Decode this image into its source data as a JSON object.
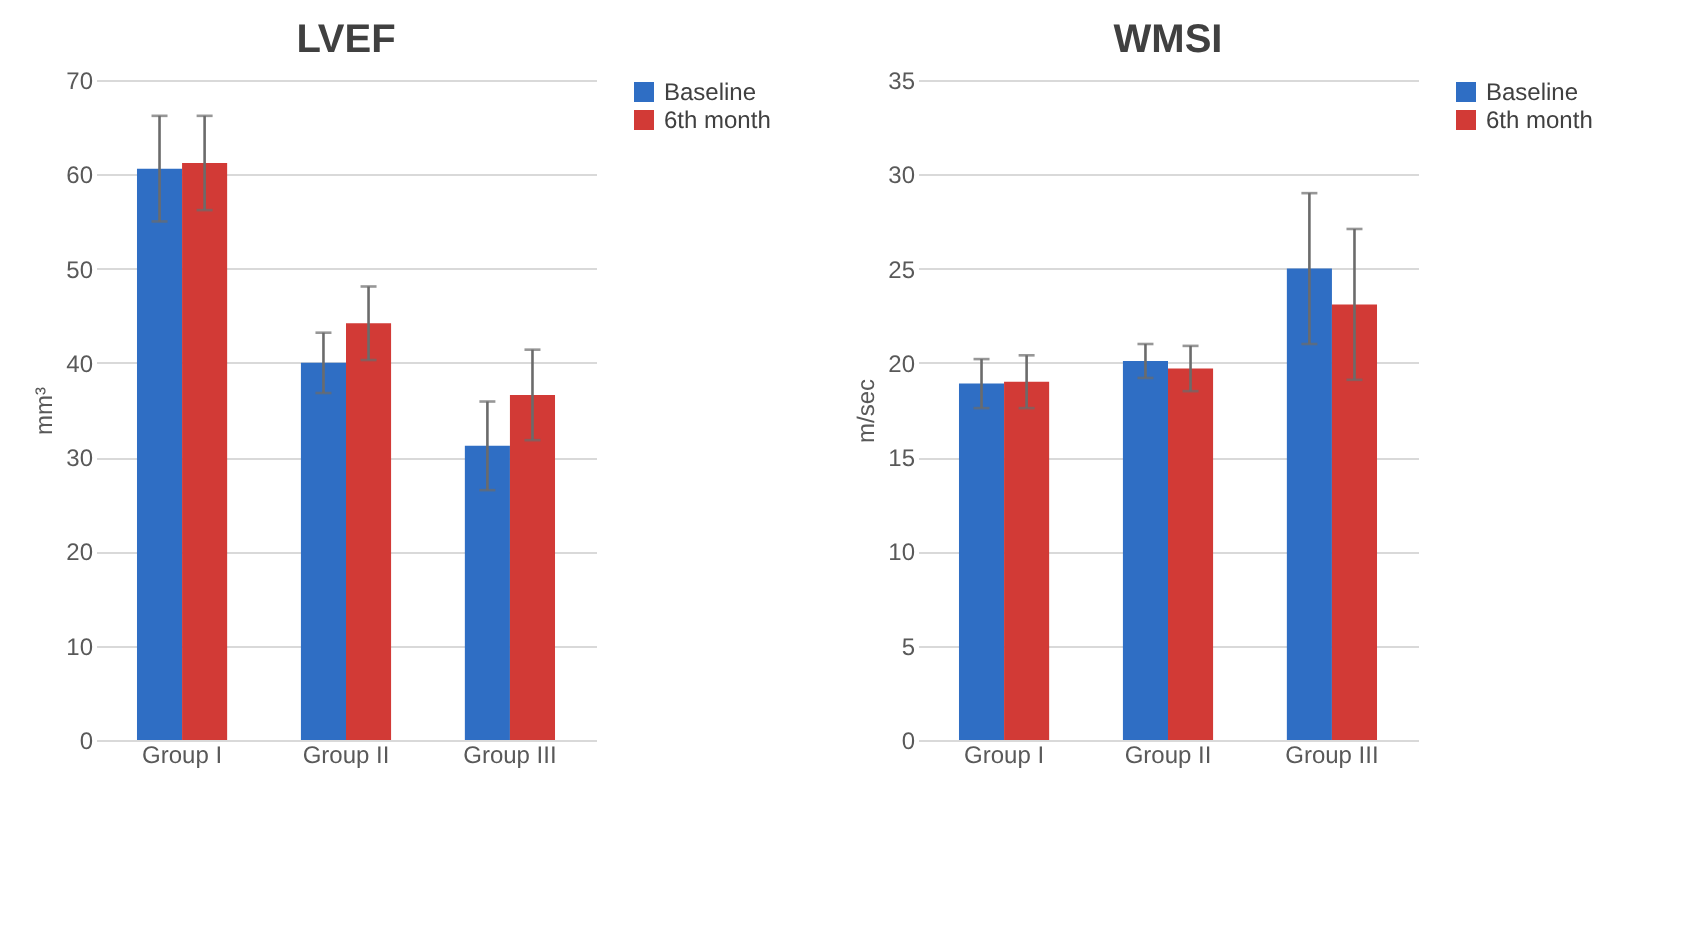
{
  "chart_data": [
    {
      "type": "bar",
      "title": "LVEF",
      "ylabel": "mm³",
      "categories": [
        "Group I",
        "Group II",
        "Group III"
      ],
      "ylim": [
        0,
        70
      ],
      "yticks": [
        0,
        10,
        20,
        30,
        40,
        50,
        60,
        70
      ],
      "grid": "y",
      "legend": "right",
      "series": [
        {
          "name": "Baseline",
          "color": "#2f6ec4",
          "values": [
            60.6,
            40.0,
            31.2
          ],
          "errors": [
            5.6,
            3.2,
            4.7
          ]
        },
        {
          "name": "6th month",
          "color": "#d23a36",
          "values": [
            61.2,
            44.2,
            36.6
          ],
          "errors": [
            5.0,
            3.9,
            4.8
          ]
        }
      ]
    },
    {
      "type": "bar",
      "title": "WMSI",
      "ylabel": "m/sec",
      "categories": [
        "Group I",
        "Group II",
        "Group III"
      ],
      "ylim": [
        0,
        35
      ],
      "yticks": [
        0,
        5,
        10,
        15,
        20,
        25,
        30,
        35
      ],
      "grid": "y",
      "legend": "right",
      "series": [
        {
          "name": "Baseline",
          "color": "#2f6ec4",
          "values": [
            18.9,
            20.1,
            25.0
          ],
          "errors": [
            1.3,
            0.9,
            4.0
          ]
        },
        {
          "name": "6th month",
          "color": "#d23a36",
          "values": [
            19.0,
            19.7,
            23.1
          ],
          "errors": [
            1.4,
            1.2,
            4.0
          ]
        }
      ]
    }
  ]
}
